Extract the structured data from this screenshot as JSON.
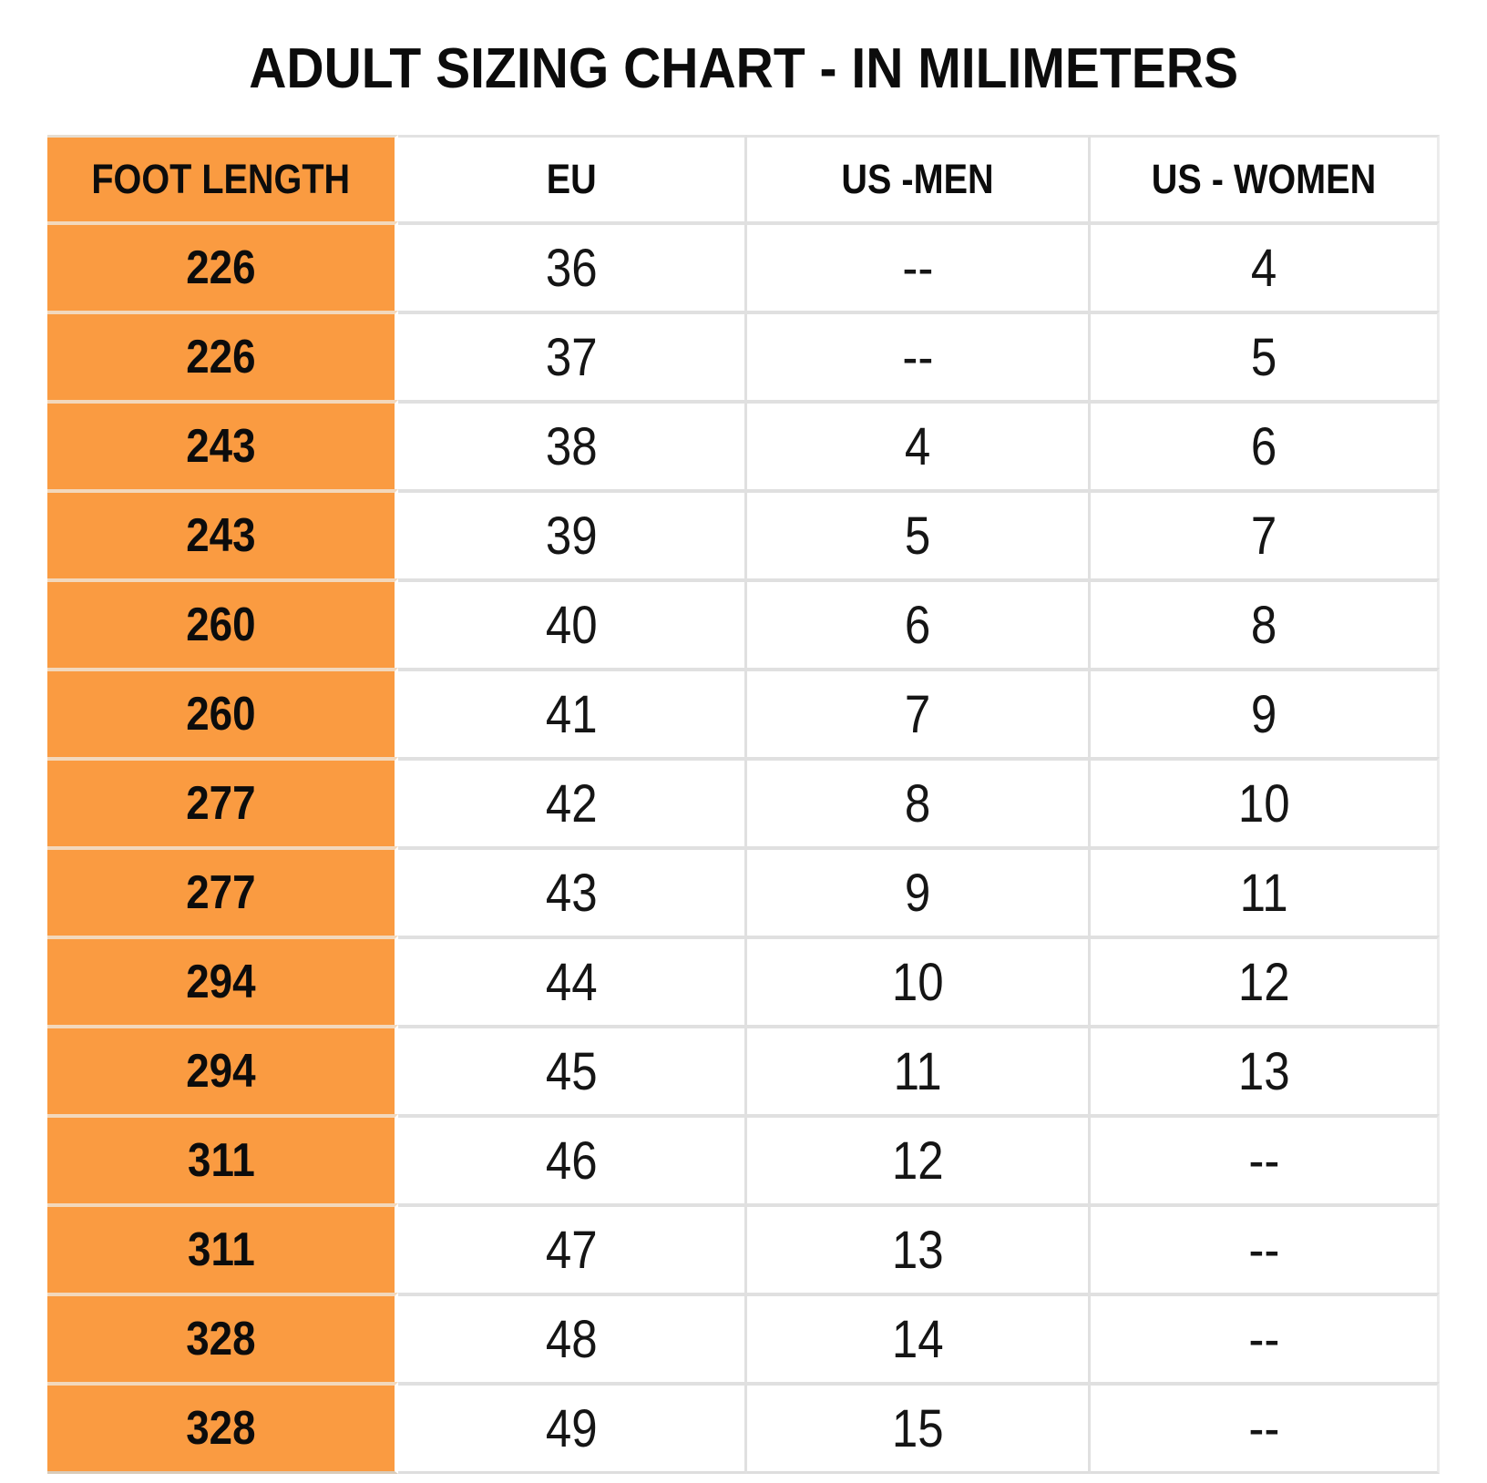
{
  "chart_data": {
    "type": "table",
    "title": "ADULT SIZING CHART - IN MILIMETERS",
    "columns": [
      "FOOT LENGTH",
      "EU",
      "US -MEN",
      "US - WOMEN"
    ],
    "rows": [
      [
        "226",
        "36",
        "--",
        "4"
      ],
      [
        "226",
        "37",
        "--",
        "5"
      ],
      [
        "243",
        "38",
        "4",
        "6"
      ],
      [
        "243",
        "39",
        "5",
        "7"
      ],
      [
        "260",
        "40",
        "6",
        "8"
      ],
      [
        "260",
        "41",
        "7",
        "9"
      ],
      [
        "277",
        "42",
        "8",
        "10"
      ],
      [
        "277",
        "43",
        "9",
        "11"
      ],
      [
        "294",
        "44",
        "10",
        "12"
      ],
      [
        "294",
        "45",
        "11",
        "13"
      ],
      [
        "311",
        "46",
        "12",
        "--"
      ],
      [
        "311",
        "47",
        "13",
        "--"
      ],
      [
        "328",
        "48",
        "14",
        "--"
      ],
      [
        "328",
        "49",
        "15",
        "--"
      ]
    ],
    "empty_value_marker": "--",
    "layout": {
      "highlighted_column": "FOOT LENGTH",
      "header_row": true,
      "grid": true
    },
    "colors": {
      "accent_orange": "#FA9B41",
      "orange_row_separator": "#F2D8BC",
      "gridline_gray": "#E0E0E0",
      "text_black": "#0C0C0C",
      "background_white": "#FFFFFF"
    }
  }
}
